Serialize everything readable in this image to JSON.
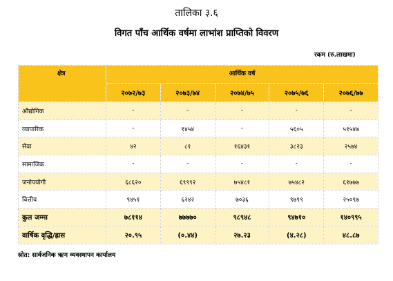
{
  "title": "तालिका ३.६",
  "subtitle": "विगत पाँच आर्थिक वर्षमा लाभांश प्राप्तिको विवरण",
  "unit_note": "रकम (रु.लाखमा)",
  "table": {
    "sector_header": "क्षेत्र",
    "fiscal_year_header": "आर्थिक वर्ष",
    "years": [
      "२०७२/७३",
      "२०७३/७४",
      "२०७४/७५",
      "२०७५/७६",
      "२०७६/७७"
    ],
    "rows": [
      {
        "label": "औद्योगिक",
        "values": [
          "-",
          "-",
          "-",
          "-",
          "-"
        ]
      },
      {
        "label": "व्यापारिक",
        "values": [
          "-",
          "१४५४",
          "-",
          "५६०५",
          "५१५४७"
        ]
      },
      {
        "label": "सेवा",
        "values": [
          "४२",
          "८१",
          "१६४३१",
          "३८२३",
          "२५७४"
        ]
      },
      {
        "label": "सामाजिक",
        "values": [
          "-",
          "-",
          "-",
          "-",
          "-"
        ]
      },
      {
        "label": "जनोपयोगी",
        "values": [
          "६८६२०",
          "६९९९२",
          "७५४८१",
          "७५४८२",
          "६१७७७"
        ]
      },
      {
        "label": "वित्तीय",
        "values": [
          "९४५१",
          "६२४२",
          "७०३६",
          "९७९९",
          "२५०९७"
        ]
      }
    ],
    "total": {
      "label": "कुल जम्मा",
      "values": [
        "७८११४",
        "७७७७०",
        "९८९४८",
        "९४७१०",
        "१४०९९५"
      ]
    },
    "growth": {
      "label": "वार्षिक वृद्धि/ह्रास",
      "values": [
        "२०.९५",
        "(०.४४)",
        "२७.२३",
        "(४.२८)",
        "४८.८७"
      ]
    }
  },
  "source": "स्रोत: सार्वजनिक ऋण व्यवस्थापन कार्यालय",
  "colors": {
    "header_bg": "#f9c31c",
    "zebra_bg": "#fef3c4"
  }
}
